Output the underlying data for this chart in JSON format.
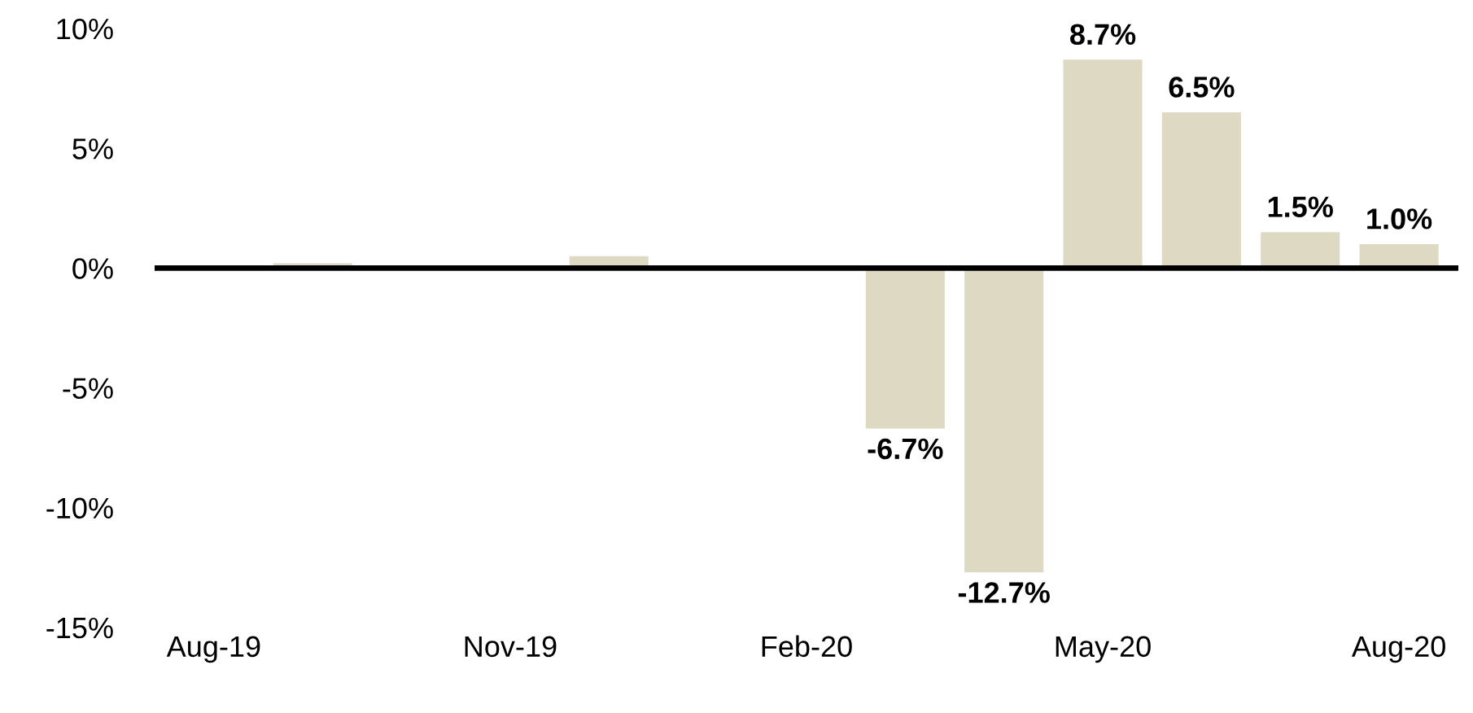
{
  "chart_data": {
    "type": "bar",
    "categories": [
      "Aug-19",
      null,
      null,
      "Nov-19",
      null,
      null,
      "Feb-20",
      null,
      null,
      "May-20",
      null,
      null,
      "Aug-20"
    ],
    "values": [
      0,
      0.2,
      0,
      0,
      0.5,
      0,
      0,
      -6.7,
      -12.7,
      8.7,
      6.5,
      1.5,
      1.0
    ],
    "value_labels": [
      null,
      null,
      null,
      null,
      null,
      null,
      null,
      "-6.7%",
      "-12.7%",
      "8.7%",
      "6.5%",
      "1.5%",
      "1.0%"
    ],
    "color": "#ddd9c3",
    "ylim": [
      -15,
      10
    ],
    "yticks": [
      {
        "value": -15,
        "label": "-15%"
      },
      {
        "value": -10,
        "label": "-10%"
      },
      {
        "value": -5,
        "label": "-5%"
      },
      {
        "value": 0,
        "label": "0%"
      },
      {
        "value": 5,
        "label": "5%"
      },
      {
        "value": 10,
        "label": "10%"
      }
    ],
    "ref_lines": [
      {
        "axis": "y",
        "value": 0,
        "color": "#000000"
      }
    ],
    "grid": false,
    "legend": false
  }
}
